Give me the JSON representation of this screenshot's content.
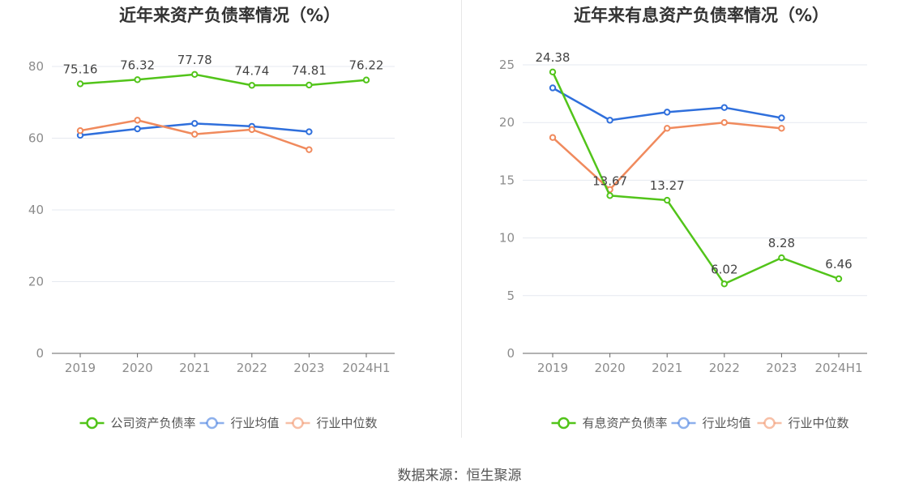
{
  "colors": {
    "green": "#52c41a",
    "blue": "#2f6fdc",
    "orange": "#f08a5d",
    "grid": "#e6e9f0",
    "axis": "#666666",
    "tick_text": "#8c8c8c",
    "label_text": "#444444"
  },
  "chart_data": [
    {
      "type": "line",
      "title": "近年来资产负债率情况（%）",
      "categories": [
        "2019",
        "2020",
        "2021",
        "2022",
        "2023",
        "2024H1"
      ],
      "ylim": [
        0,
        80
      ],
      "yticks": [
        0,
        20,
        40,
        60,
        80
      ],
      "grid": true,
      "legend_position": "bottom",
      "series": [
        {
          "name": "公司资产负债率",
          "color": "#52c41a",
          "labeled": true,
          "values": [
            75.16,
            76.32,
            77.78,
            74.74,
            74.81,
            76.22
          ],
          "labels": [
            "75.16",
            "76.32",
            "77.78",
            "74.74",
            "74.81",
            "76.22"
          ]
        },
        {
          "name": "行业均值",
          "color": "#2f6fdc",
          "labeled": false,
          "values": [
            60.8,
            62.6,
            64.1,
            63.3,
            61.8,
            null
          ]
        },
        {
          "name": "行业中位数",
          "color": "#f08a5d",
          "labeled": false,
          "values": [
            62.1,
            65.0,
            61.1,
            62.4,
            56.8,
            null
          ]
        }
      ]
    },
    {
      "type": "line",
      "title": "近年来有息资产负债率情况（%）",
      "categories": [
        "2019",
        "2020",
        "2021",
        "2022",
        "2023",
        "2024H1"
      ],
      "ylim": [
        0,
        25
      ],
      "yticks": [
        0,
        5,
        10,
        15,
        20,
        25
      ],
      "grid": true,
      "legend_position": "bottom",
      "series": [
        {
          "name": "有息资产负债率",
          "color": "#52c41a",
          "labeled": true,
          "values": [
            24.38,
            13.67,
            13.27,
            6.02,
            8.28,
            6.46
          ],
          "labels": [
            "24.38",
            "13.67",
            "13.27",
            "6.02",
            "8.28",
            "6.46"
          ]
        },
        {
          "name": "行业均值",
          "color": "#2f6fdc",
          "labeled": false,
          "values": [
            23.0,
            20.2,
            20.9,
            21.3,
            20.4,
            null
          ]
        },
        {
          "name": "行业中位数",
          "color": "#f08a5d",
          "labeled": false,
          "values": [
            18.7,
            14.2,
            19.5,
            20.0,
            19.5,
            null
          ]
        }
      ]
    }
  ],
  "footer": {
    "source": "数据来源：恒生聚源"
  }
}
